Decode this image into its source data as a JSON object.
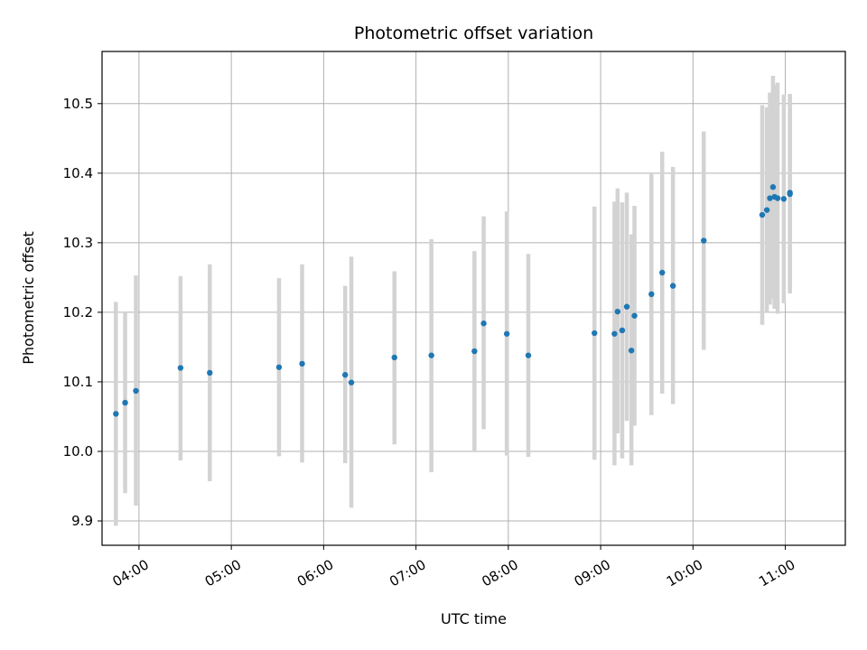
{
  "chart_data": {
    "type": "scatter",
    "title": "Photometric offset variation",
    "xlabel": "UTC time",
    "ylabel": "Photometric offset",
    "x_unit": "hours UTC",
    "xlim": [
      "03:36",
      "11:39"
    ],
    "ylim": [
      9.865,
      10.575
    ],
    "x_ticks": [
      "04:00",
      "05:00",
      "06:00",
      "07:00",
      "08:00",
      "09:00",
      "10:00",
      "11:00"
    ],
    "y_ticks": [
      "9.9",
      "10.0",
      "10.1",
      "10.2",
      "10.3",
      "10.4",
      "10.5"
    ],
    "grid": true,
    "point_color": "#1f77b4",
    "errorbar_color": "#d3d3d3",
    "points": [
      {
        "time": "03:45",
        "y": 10.054,
        "ylo": 9.893,
        "yhi": 10.215
      },
      {
        "time": "03:51",
        "y": 10.07,
        "ylo": 9.94,
        "yhi": 10.2
      },
      {
        "time": "03:58",
        "y": 10.087,
        "ylo": 9.922,
        "yhi": 10.253
      },
      {
        "time": "04:27",
        "y": 10.12,
        "ylo": 9.987,
        "yhi": 10.252
      },
      {
        "time": "04:46",
        "y": 10.113,
        "ylo": 9.957,
        "yhi": 10.269
      },
      {
        "time": "05:31",
        "y": 10.121,
        "ylo": 9.993,
        "yhi": 10.249
      },
      {
        "time": "05:46",
        "y": 10.126,
        "ylo": 9.984,
        "yhi": 10.269
      },
      {
        "time": "06:14",
        "y": 10.11,
        "ylo": 9.983,
        "yhi": 10.238
      },
      {
        "time": "06:18",
        "y": 10.099,
        "ylo": 9.919,
        "yhi": 10.28
      },
      {
        "time": "06:46",
        "y": 10.135,
        "ylo": 10.01,
        "yhi": 10.259
      },
      {
        "time": "07:10",
        "y": 10.138,
        "ylo": 9.97,
        "yhi": 10.305
      },
      {
        "time": "07:38",
        "y": 10.144,
        "ylo": 10.0,
        "yhi": 10.288
      },
      {
        "time": "07:44",
        "y": 10.184,
        "ylo": 10.032,
        "yhi": 10.338
      },
      {
        "time": "07:59",
        "y": 10.169,
        "ylo": 9.994,
        "yhi": 10.345
      },
      {
        "time": "08:13",
        "y": 10.138,
        "ylo": 9.992,
        "yhi": 10.284
      },
      {
        "time": "08:56",
        "y": 10.17,
        "ylo": 9.988,
        "yhi": 10.352
      },
      {
        "time": "09:09",
        "y": 10.169,
        "ylo": 9.98,
        "yhi": 10.359
      },
      {
        "time": "09:11",
        "y": 10.201,
        "ylo": 10.026,
        "yhi": 10.378
      },
      {
        "time": "09:14",
        "y": 10.174,
        "ylo": 9.99,
        "yhi": 10.358
      },
      {
        "time": "09:17",
        "y": 10.208,
        "ylo": 10.044,
        "yhi": 10.372
      },
      {
        "time": "09:20",
        "y": 10.145,
        "ylo": 9.98,
        "yhi": 10.312
      },
      {
        "time": "09:22",
        "y": 10.195,
        "ylo": 10.037,
        "yhi": 10.353
      },
      {
        "time": "09:33",
        "y": 10.226,
        "ylo": 10.052,
        "yhi": 10.4
      },
      {
        "time": "09:40",
        "y": 10.257,
        "ylo": 10.083,
        "yhi": 10.431
      },
      {
        "time": "09:47",
        "y": 10.238,
        "ylo": 10.068,
        "yhi": 10.409
      },
      {
        "time": "10:07",
        "y": 10.303,
        "ylo": 10.146,
        "yhi": 10.46
      },
      {
        "time": "10:45",
        "y": 10.34,
        "ylo": 10.182,
        "yhi": 10.498
      },
      {
        "time": "10:48",
        "y": 10.347,
        "ylo": 10.2,
        "yhi": 10.495
      },
      {
        "time": "10:50",
        "y": 10.364,
        "ylo": 10.211,
        "yhi": 10.516
      },
      {
        "time": "10:52",
        "y": 10.38,
        "ylo": 10.22,
        "yhi": 10.54
      },
      {
        "time": "10:53",
        "y": 10.366,
        "ylo": 10.205,
        "yhi": 10.527
      },
      {
        "time": "10:55",
        "y": 10.364,
        "ylo": 10.198,
        "yhi": 10.53
      },
      {
        "time": "10:59",
        "y": 10.363,
        "ylo": 10.213,
        "yhi": 10.513
      },
      {
        "time": "11:03",
        "y": 10.37,
        "ylo": 10.227,
        "yhi": 10.513
      },
      {
        "time": "11:03",
        "y": 10.372,
        "ylo": 10.23,
        "yhi": 10.514
      }
    ]
  }
}
